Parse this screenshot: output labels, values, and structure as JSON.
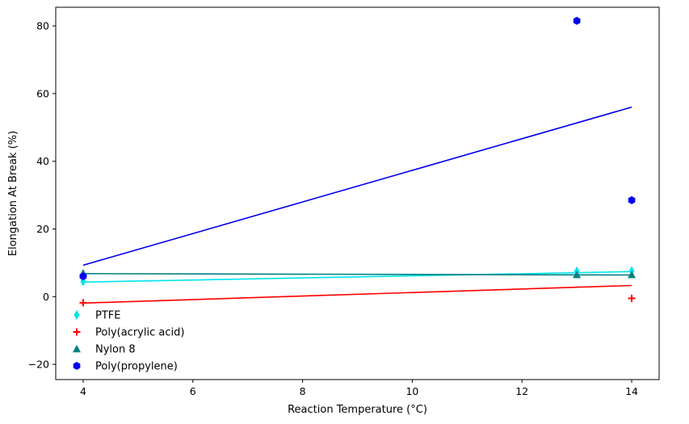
{
  "chart_data": {
    "type": "scatter",
    "title": "",
    "xlabel": "Reaction Temperature (°C)",
    "ylabel": "Elongation At Break (%)",
    "xlim": [
      3.5,
      14.5
    ],
    "ylim": [
      -24.5,
      85.5
    ],
    "xticks": [
      4,
      6,
      8,
      10,
      12,
      14
    ],
    "yticks": [
      -20,
      0,
      20,
      40,
      60,
      80
    ],
    "xtick_labels": [
      "4",
      "6",
      "8",
      "10",
      "12",
      "14"
    ],
    "ytick_labels": [
      "−20",
      "0",
      "20",
      "40",
      "60",
      "80"
    ],
    "grid": false,
    "legend_position": "lower-left",
    "series": [
      {
        "name": "PTFE",
        "marker": "thin-diamond",
        "color": "#00e5ee",
        "points": [
          [
            4,
            4.5
          ],
          [
            13,
            7.5
          ],
          [
            14,
            7.6
          ]
        ],
        "trendline": [
          [
            4,
            4.3
          ],
          [
            14,
            7.4
          ]
        ]
      },
      {
        "name": "Poly(acrylic acid)",
        "marker": "plus",
        "color": "#ff0000",
        "points": [
          [
            4,
            -1.8
          ],
          [
            14,
            -0.5
          ]
        ],
        "trendline": [
          [
            4,
            -1.9
          ],
          [
            14,
            3.3
          ]
        ]
      },
      {
        "name": "Nylon 8",
        "marker": "triangle",
        "color": "#008080",
        "points": [
          [
            4,
            7.0
          ],
          [
            13,
            6.5
          ],
          [
            14,
            6.5
          ]
        ],
        "trendline": [
          [
            4,
            6.8
          ],
          [
            14,
            6.4
          ]
        ]
      },
      {
        "name": "Poly(propylene)",
        "marker": "hexagon",
        "color": "#0000ee",
        "points": [
          [
            4,
            6.0
          ],
          [
            13,
            81.5
          ],
          [
            14,
            28.5
          ]
        ],
        "trendline": [
          [
            4,
            9.3
          ],
          [
            14,
            56.0
          ]
        ]
      }
    ]
  }
}
